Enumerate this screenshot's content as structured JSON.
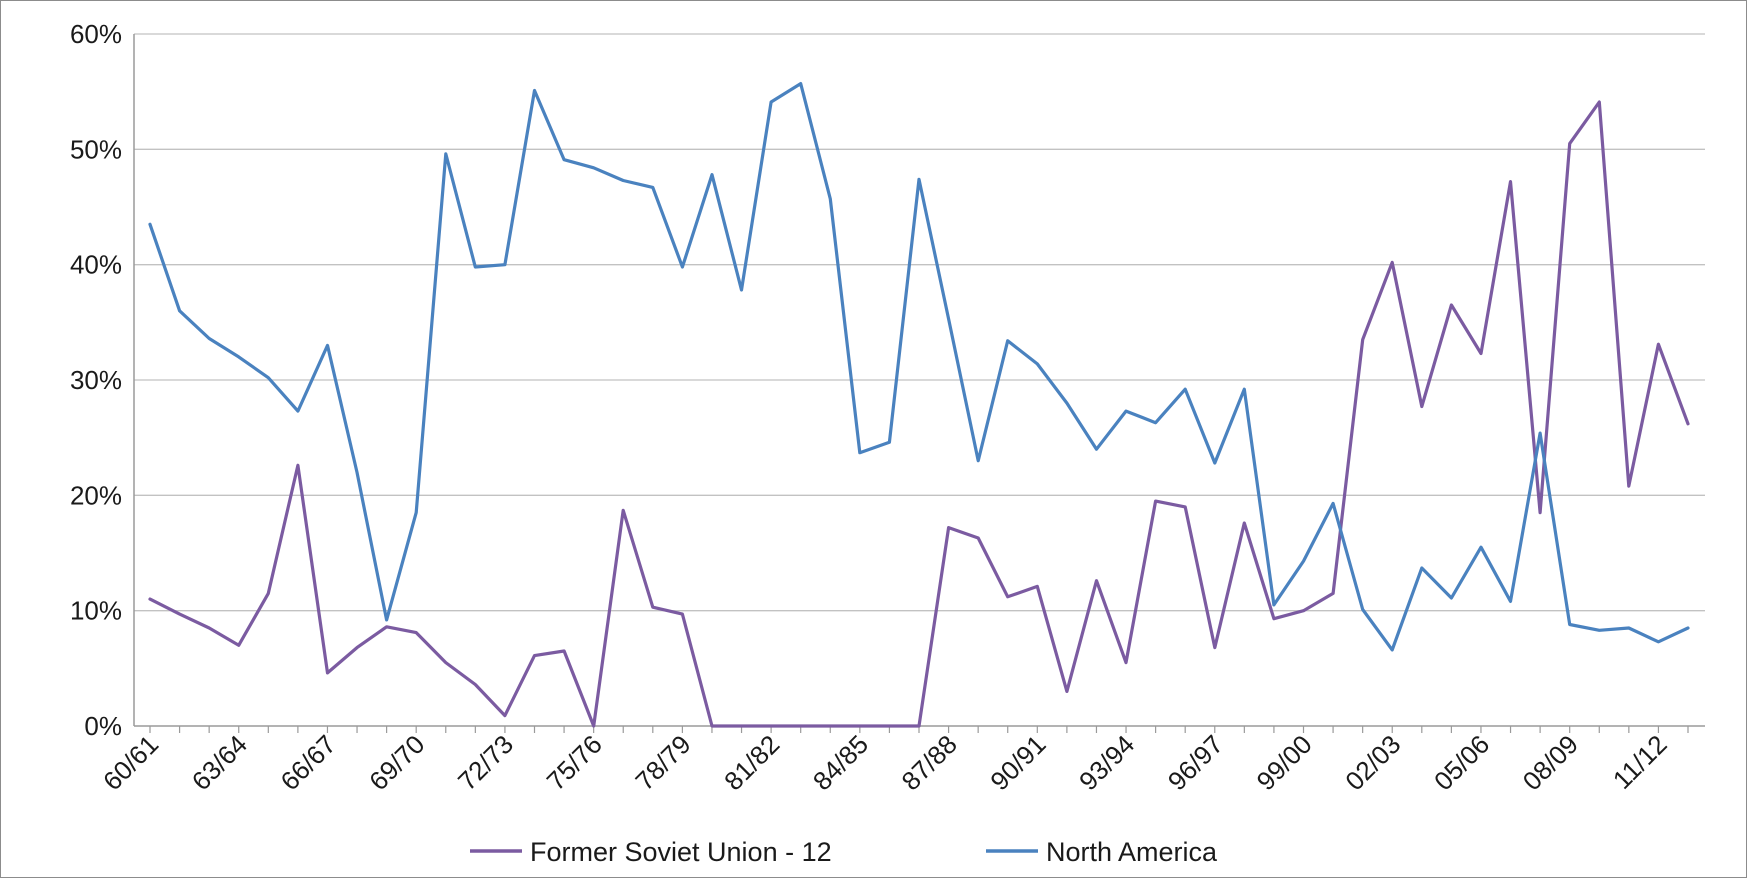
{
  "chart_data": {
    "type": "line",
    "title": "",
    "xlabel": "",
    "ylabel": "",
    "ylim": [
      0,
      60
    ],
    "y_ticks": [
      "0%",
      "10%",
      "20%",
      "30%",
      "40%",
      "50%",
      "60%"
    ],
    "grid": true,
    "legend_position": "bottom",
    "x": [
      "60/61",
      "61/62",
      "62/63",
      "63/64",
      "64/65",
      "65/66",
      "66/67",
      "67/68",
      "68/69",
      "69/70",
      "70/71",
      "71/72",
      "72/73",
      "73/74",
      "74/75",
      "75/76",
      "76/77",
      "77/78",
      "78/79",
      "79/80",
      "80/81",
      "81/82",
      "82/83",
      "83/84",
      "84/85",
      "85/86",
      "86/87",
      "87/88",
      "88/89",
      "89/90",
      "90/91",
      "91/92",
      "92/93",
      "93/94",
      "94/95",
      "95/96",
      "96/97",
      "97/98",
      "98/99",
      "99/00",
      "00/01",
      "01/02",
      "02/03",
      "03/04",
      "04/05",
      "05/06",
      "06/07",
      "07/08",
      "08/09",
      "09/10",
      "10/11",
      "11/12",
      "12/13"
    ],
    "x_tick_labels": [
      "60/61",
      "63/64",
      "66/67",
      "69/70",
      "72/73",
      "75/76",
      "78/79",
      "81/82",
      "84/85",
      "87/88",
      "90/91",
      "93/94",
      "96/97",
      "99/00",
      "02/03",
      "05/06",
      "08/09",
      "11/12"
    ],
    "series": [
      {
        "name": "Former Soviet Union - 12",
        "color": "#7b5ba1",
        "values": [
          11.0,
          9.7,
          8.5,
          7.0,
          11.5,
          22.6,
          4.6,
          6.8,
          8.6,
          8.1,
          5.5,
          3.6,
          0.9,
          6.1,
          6.5,
          0.0,
          18.7,
          10.3,
          9.7,
          0.0,
          0.0,
          0.0,
          0.0,
          0.0,
          0.0,
          0.0,
          0.0,
          17.2,
          16.3,
          11.2,
          12.1,
          3.0,
          12.6,
          5.5,
          19.5,
          19.0,
          6.8,
          17.6,
          9.3,
          10.0,
          11.5,
          33.5,
          40.2,
          27.7,
          36.5,
          32.3,
          47.2,
          18.5,
          50.5,
          54.1,
          20.8,
          33.1,
          26.2
        ]
      },
      {
        "name": "North America",
        "color": "#4a82bf",
        "values": [
          43.5,
          36.0,
          33.6,
          32.0,
          30.2,
          27.3,
          33.0,
          22.0,
          9.2,
          18.5,
          49.6,
          39.8,
          40.0,
          55.1,
          49.1,
          48.4,
          47.3,
          46.7,
          39.8,
          47.8,
          37.8,
          54.1,
          55.7,
          45.7,
          23.7,
          24.6,
          47.4,
          35.3,
          23.0,
          33.4,
          31.4,
          28.0,
          24.0,
          27.3,
          26.3,
          29.2,
          22.8,
          29.2,
          10.5,
          14.3,
          19.3,
          10.1,
          6.6,
          13.7,
          11.1,
          15.5,
          10.8,
          25.4,
          8.8,
          8.3,
          8.5,
          7.3,
          8.5
        ]
      }
    ]
  }
}
